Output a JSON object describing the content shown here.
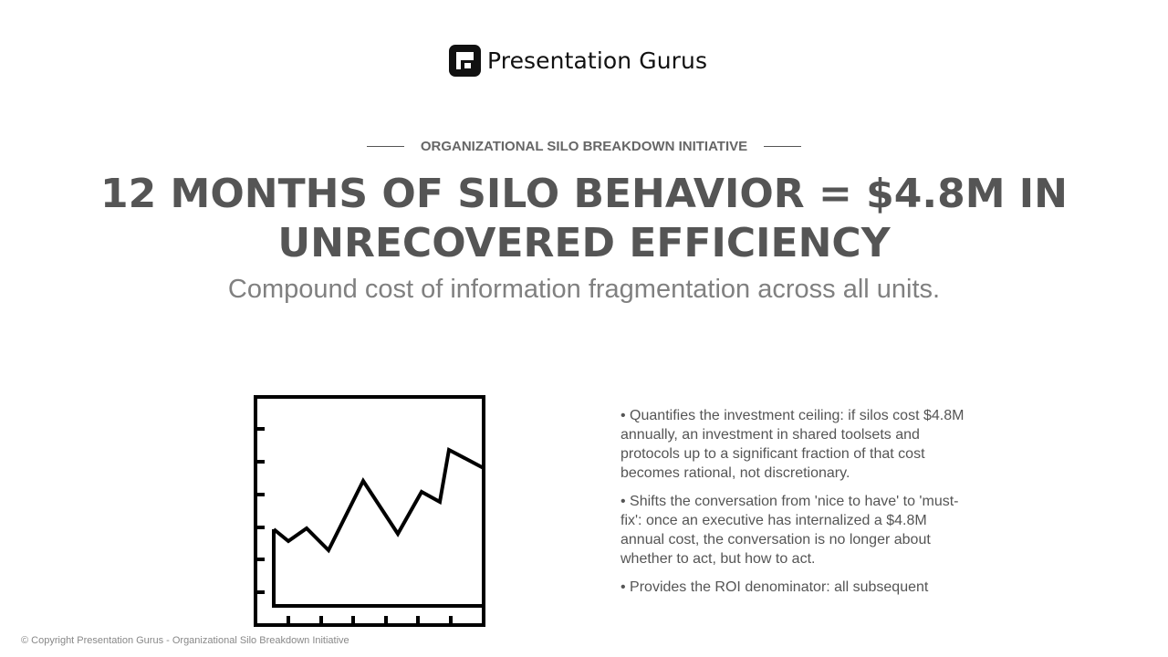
{
  "logo": {
    "brand": "Presentation Gurus",
    "icon": "presentation-gurus-logo-mark"
  },
  "eyebrow": "ORGANIZATIONAL SILO BREAKDOWN INITIATIVE",
  "headline": "12 MONTHS OF SILO BEHAVIOR = $4.8M IN UNRECOVERED EFFICIENCY",
  "subtitle": "Compound cost of information fragmentation across all units.",
  "illustration": {
    "icon": "line-chart-icon"
  },
  "bullets": [
    "• Quantifies the investment ceiling: if silos cost $4.8M annually, an investment in shared toolsets and protocols up to a significant fraction of that cost becomes rational, not discretionary.",
    "• Shifts the conversation from 'nice to have' to 'must-fix': once an executive has internalized a $4.8M annual cost, the conversation is no longer about whether to act, but how to act.",
    "• Provides the ROI denominator: all subsequent"
  ],
  "footer": "© Copyright Presentation Gurus - Organizational Silo Breakdown Initiative",
  "colors": {
    "text_dark": "#555555",
    "text_muted": "#808080",
    "logo": "#111111",
    "background": "#ffffff"
  }
}
